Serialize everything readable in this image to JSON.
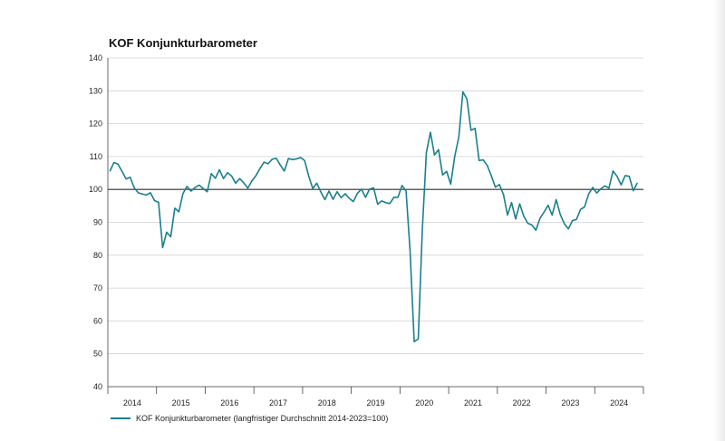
{
  "chart_data": {
    "type": "line",
    "title": "KOF Konjunkturbarometer",
    "xlabel": "",
    "ylabel": "",
    "ylim": [
      40,
      140
    ],
    "yticks": [
      40,
      50,
      60,
      70,
      80,
      90,
      100,
      110,
      120,
      130,
      140
    ],
    "year_labels": [
      "2014",
      "2015",
      "2016",
      "2017",
      "2018",
      "2019",
      "2020",
      "2021",
      "2022",
      "2023",
      "2024"
    ],
    "reference_line": 100,
    "grid": true,
    "legend_position": "bottom-left",
    "colors": {
      "series": "#1a7f8f",
      "grid": "#d0d0d0",
      "reference": "#333333"
    },
    "series": [
      {
        "name": "KOF Konjunkturbarometer (langfristiger Durchschnitt 2014-2023=100)",
        "start": "2014-01",
        "frequency": "monthly",
        "values": [
          105.5,
          108.2,
          107.7,
          105.5,
          103.2,
          103.7,
          100.5,
          99.0,
          98.6,
          98.3,
          99.0,
          96.6,
          96.1,
          82.3,
          87.0,
          85.6,
          94.3,
          93.2,
          98.7,
          100.9,
          99.5,
          100.6,
          101.3,
          100.3,
          99.3,
          104.8,
          103.4,
          106.0,
          103.3,
          105.1,
          104.1,
          101.9,
          103.3,
          102.0,
          100.4,
          102.6,
          104.2,
          106.4,
          108.3,
          107.8,
          109.2,
          109.5,
          107.4,
          105.6,
          109.4,
          109.1,
          109.3,
          109.7,
          108.8,
          104.1,
          100.3,
          101.9,
          99.2,
          96.9,
          99.5,
          97.0,
          99.3,
          97.5,
          98.7,
          97.3,
          96.3,
          98.8,
          100.1,
          97.6,
          100.1,
          100.5,
          95.5,
          96.5,
          96.0,
          95.7,
          97.6,
          97.6,
          101.2,
          99.5,
          81.0,
          53.7,
          54.5,
          87.6,
          111.2,
          117.4,
          110.5,
          112.1,
          104.4,
          105.5,
          101.6,
          110.1,
          115.9,
          129.7,
          127.5,
          118.0,
          118.6,
          108.8,
          109.0,
          107.3,
          104.2,
          100.7,
          101.5,
          98.5,
          92.2,
          96.0,
          91.0,
          95.6,
          91.9,
          89.7,
          89.2,
          87.6,
          91.2,
          93.1,
          95.2,
          92.2,
          96.9,
          92.4,
          89.6,
          88.0,
          90.5,
          90.9,
          93.9,
          94.7,
          98.6,
          100.6,
          98.9,
          100.2,
          101.1,
          100.4,
          105.6,
          104.0,
          101.4,
          104.2,
          104.0,
          99.6,
          102.0
        ]
      }
    ]
  }
}
